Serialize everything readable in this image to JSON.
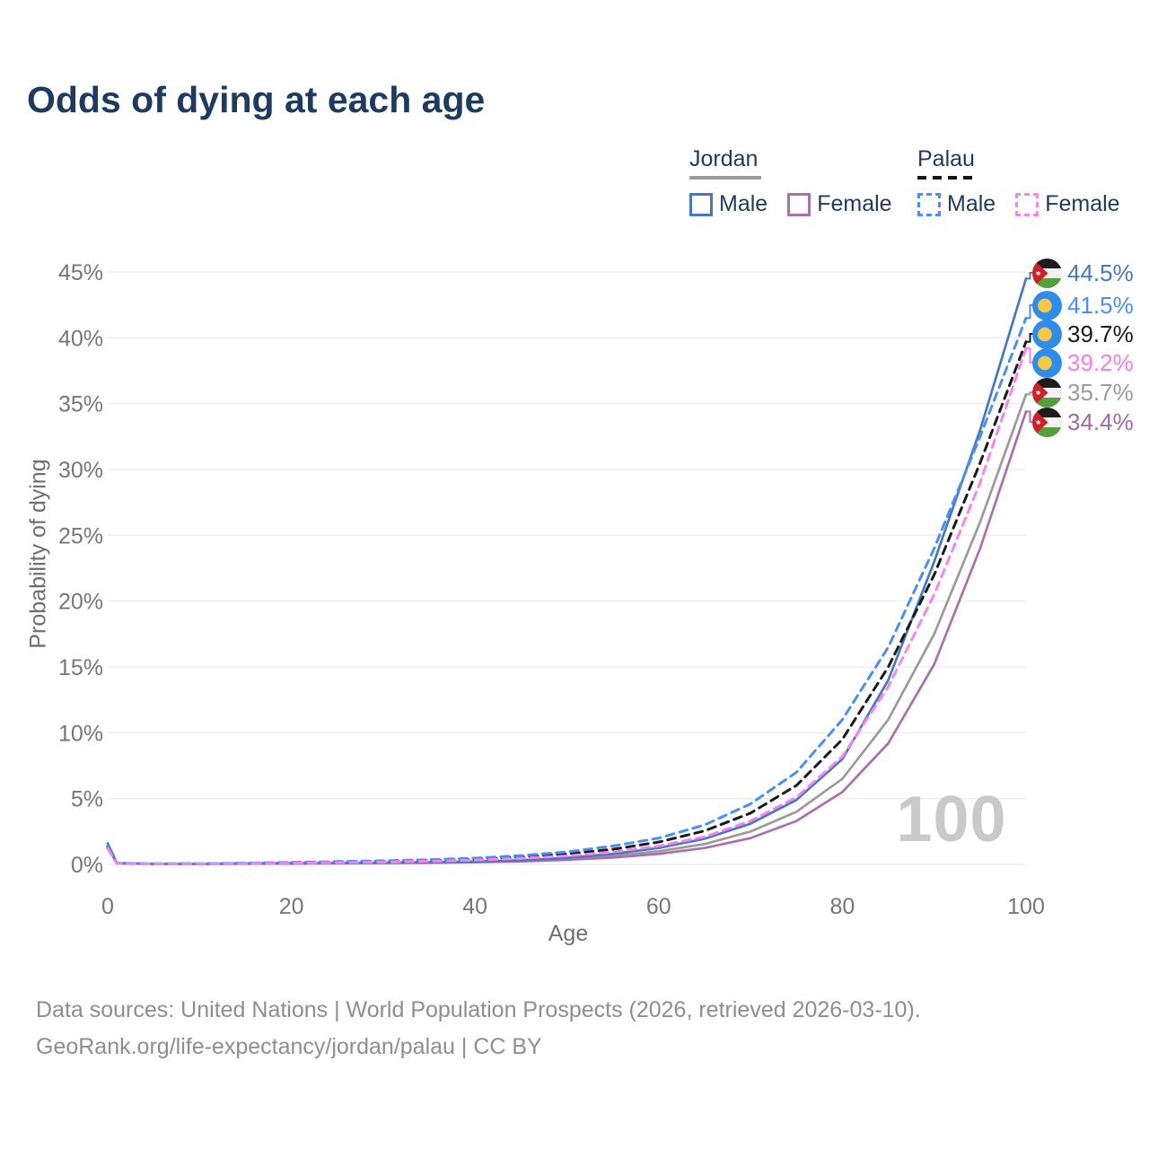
{
  "title": "Odds of dying at each age",
  "legend": {
    "groups": [
      {
        "country": "Jordan",
        "line_style": "solid",
        "underline_color": "#9b9b9b",
        "items": [
          {
            "label": "Male",
            "color": "#4678bd"
          },
          {
            "label": "Female",
            "color": "#ab6fae"
          }
        ]
      },
      {
        "country": "Palau",
        "line_style": "dashed",
        "underline_color": "#141414",
        "items": [
          {
            "label": "Male",
            "color": "#4a8ff2"
          },
          {
            "label": "Female",
            "color": "#f883ec"
          }
        ]
      }
    ]
  },
  "watermark": "100",
  "footer": {
    "line1": "Data sources: United Nations | World Population Prospects (2026, retrieved 2026-03-10).",
    "line2": "GeoRank.org/life-expectancy/jordan/palau | CC BY"
  },
  "chart_data": {
    "type": "line",
    "title": "Odds of dying at each age",
    "xlabel": "Age",
    "ylabel": "Probability of dying",
    "xlim": [
      0,
      100
    ],
    "ylim": [
      0,
      45
    ],
    "x_ticks": [
      0,
      20,
      40,
      60,
      80,
      100
    ],
    "y_ticks": [
      0,
      5,
      10,
      15,
      20,
      25,
      30,
      35,
      40,
      45
    ],
    "y_tick_suffix": "%",
    "grid": "horizontal",
    "legend_position": "top-right",
    "ages": [
      0,
      1,
      5,
      10,
      15,
      20,
      25,
      30,
      35,
      40,
      45,
      50,
      55,
      60,
      65,
      70,
      75,
      80,
      85,
      90,
      95,
      100
    ],
    "series": [
      {
        "name": "Jordan Male",
        "country": "Jordan",
        "sex": "male",
        "style": "solid",
        "color": "#4678bd",
        "values": [
          1.6,
          0.1,
          0.05,
          0.05,
          0.08,
          0.1,
          0.12,
          0.14,
          0.17,
          0.22,
          0.32,
          0.5,
          0.8,
          1.25,
          1.95,
          3.1,
          4.9,
          8.0,
          14.0,
          23.0,
          33.0,
          44.5
        ]
      },
      {
        "name": "Palau Male",
        "country": "Palau",
        "sex": "male",
        "style": "dashed",
        "color": "#4a8ff2",
        "values": [
          1.4,
          0.09,
          0.05,
          0.06,
          0.1,
          0.16,
          0.22,
          0.28,
          0.36,
          0.48,
          0.67,
          0.95,
          1.4,
          2.0,
          3.0,
          4.6,
          7.0,
          11.0,
          16.5,
          24.0,
          32.5,
          41.5
        ]
      },
      {
        "name": "Palau (both sexes)",
        "country": "Palau",
        "sex": "both",
        "style": "dashed",
        "color": "#1a1a1a",
        "values": [
          1.3,
          0.08,
          0.04,
          0.05,
          0.08,
          0.13,
          0.18,
          0.23,
          0.3,
          0.4,
          0.56,
          0.8,
          1.15,
          1.7,
          2.55,
          3.9,
          6.0,
          9.5,
          15.0,
          22.0,
          30.5,
          39.7
        ]
      },
      {
        "name": "Palau Female",
        "country": "Palau",
        "sex": "female",
        "style": "dashed",
        "color": "#f883ec",
        "values": [
          1.2,
          0.07,
          0.03,
          0.04,
          0.06,
          0.1,
          0.14,
          0.18,
          0.24,
          0.33,
          0.46,
          0.65,
          0.95,
          1.4,
          2.1,
          3.3,
          5.1,
          8.2,
          13.5,
          20.5,
          29.0,
          39.2
        ]
      },
      {
        "name": "Jordan (both sexes)",
        "country": "Jordan",
        "sex": "both",
        "style": "solid",
        "color": "#9b9b9b",
        "values": [
          1.45,
          0.09,
          0.04,
          0.04,
          0.06,
          0.08,
          0.1,
          0.12,
          0.15,
          0.19,
          0.27,
          0.42,
          0.65,
          1.0,
          1.55,
          2.5,
          4.0,
          6.5,
          11.0,
          17.5,
          26.0,
          35.7
        ]
      },
      {
        "name": "Jordan Female",
        "country": "Jordan",
        "sex": "female",
        "style": "solid",
        "color": "#ab6fae",
        "values": [
          1.3,
          0.08,
          0.03,
          0.03,
          0.05,
          0.06,
          0.08,
          0.1,
          0.13,
          0.17,
          0.23,
          0.35,
          0.52,
          0.8,
          1.25,
          2.0,
          3.3,
          5.5,
          9.2,
          15.2,
          24.0,
          34.4
        ]
      }
    ],
    "end_labels": [
      {
        "flag": "jordan",
        "value": "44.5%",
        "color": "#4678bd"
      },
      {
        "flag": "palau",
        "value": "41.5%",
        "color": "#4a8ff2"
      },
      {
        "flag": "palau",
        "value": "39.7%",
        "color": "#1a1a1a"
      },
      {
        "flag": "palau",
        "value": "39.2%",
        "color": "#f87ce8"
      },
      {
        "flag": "jordan",
        "value": "35.7%",
        "color": "#9b9b9b"
      },
      {
        "flag": "jordan",
        "value": "34.4%",
        "color": "#a268a8"
      }
    ]
  }
}
